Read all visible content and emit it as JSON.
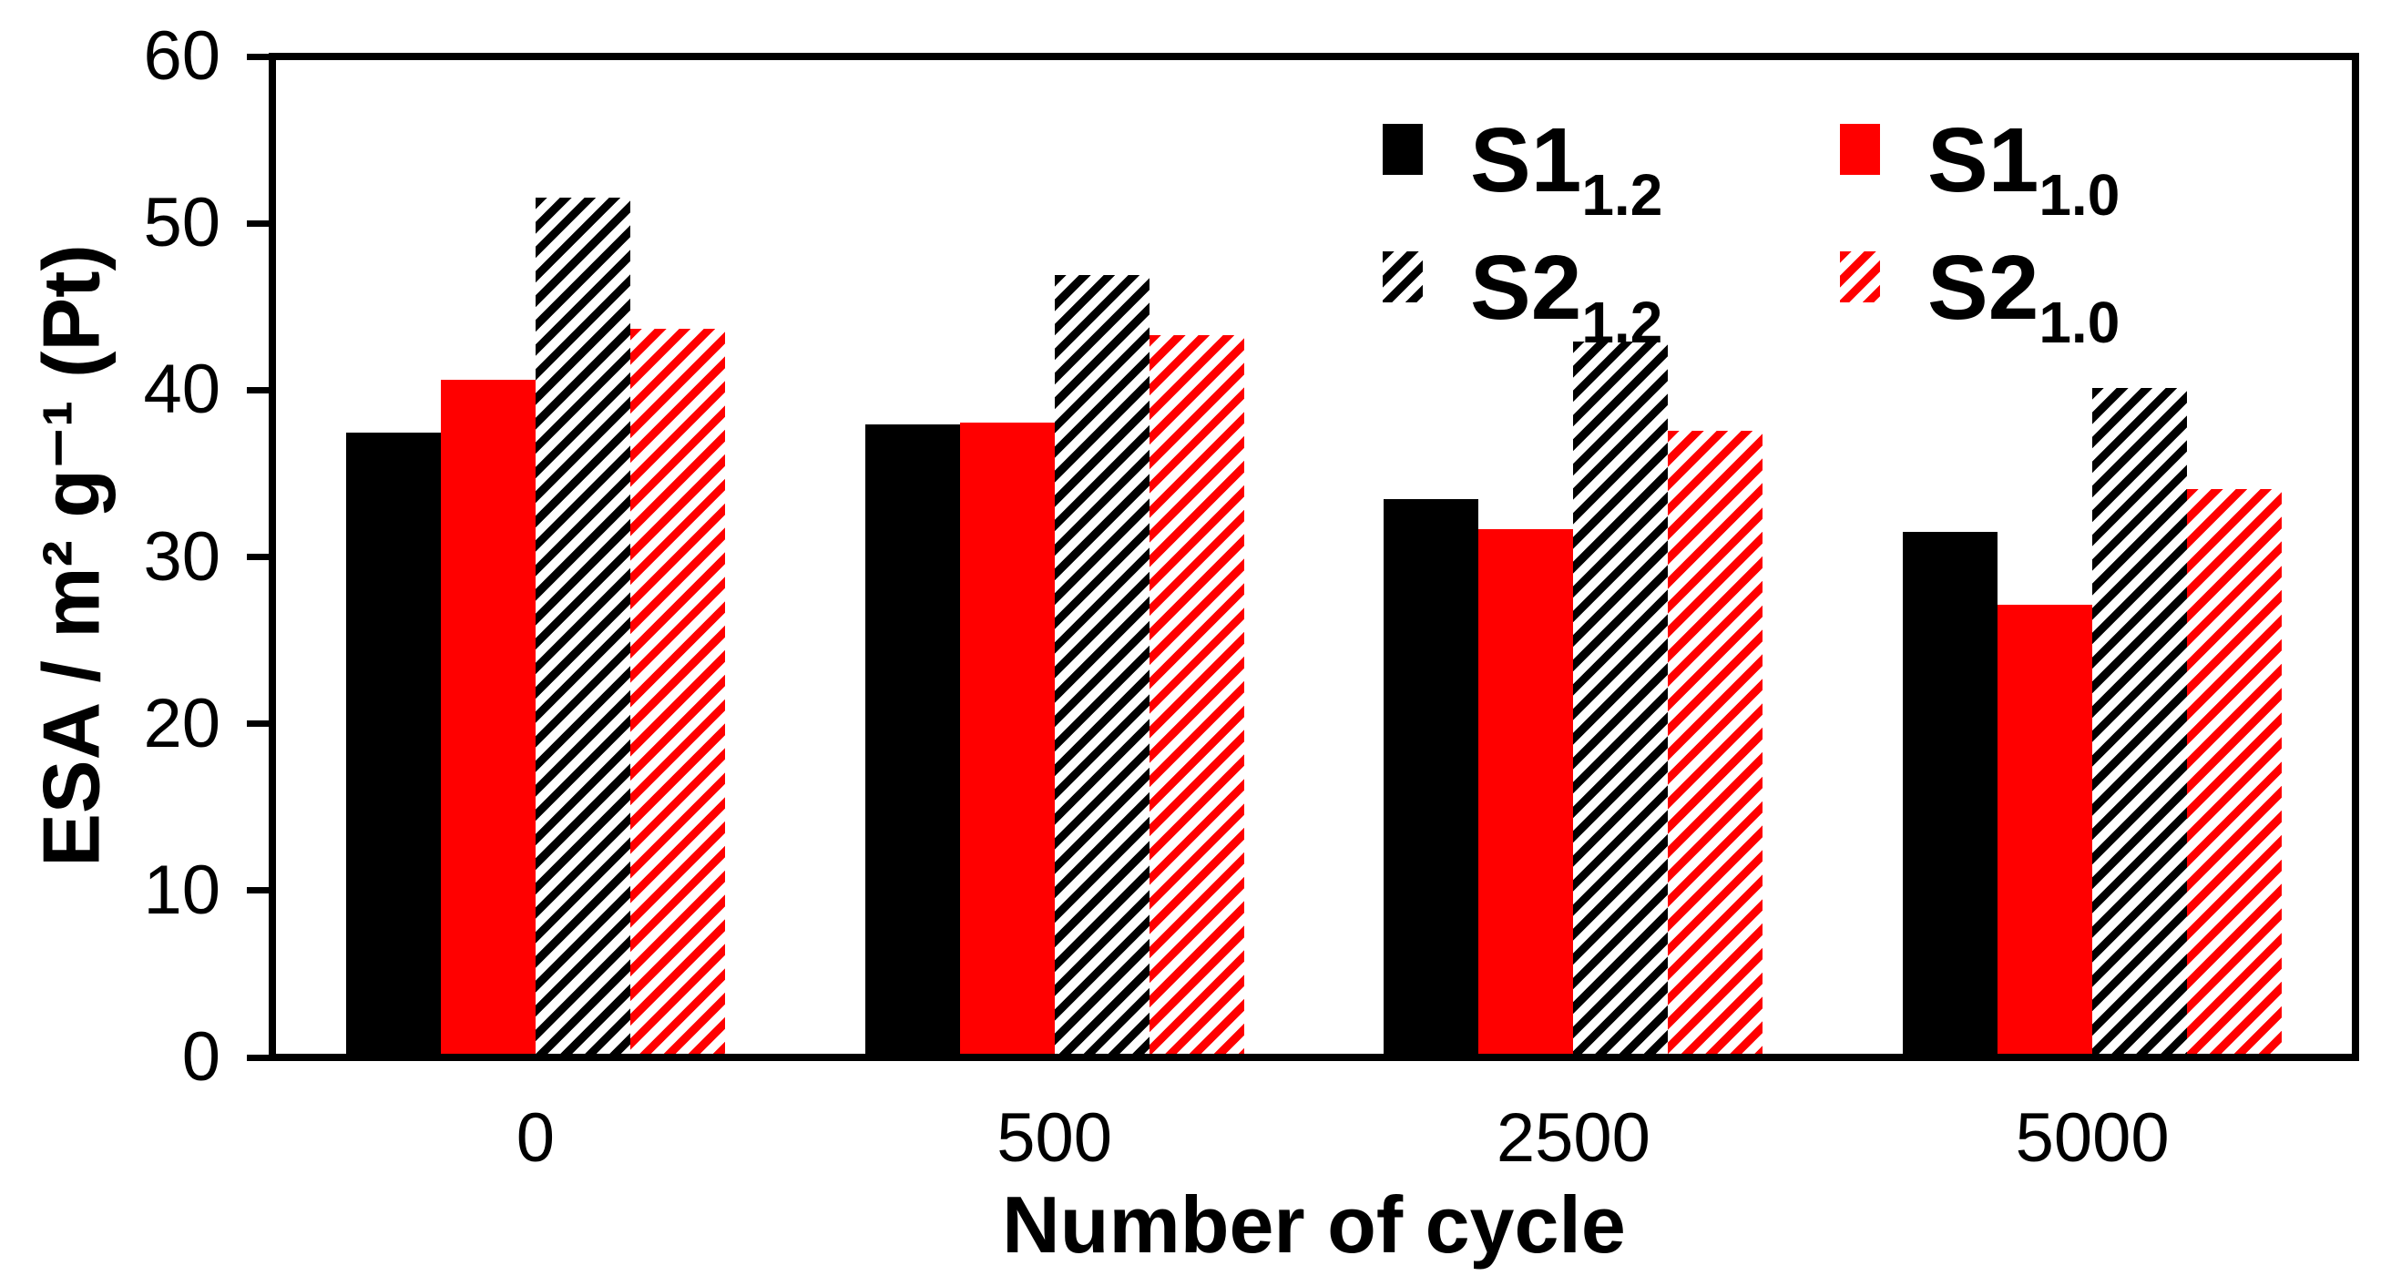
{
  "chart_data": {
    "type": "bar",
    "title": "",
    "categories": [
      "0",
      "500",
      "2500",
      "5000"
    ],
    "series": [
      {
        "name": "S1_1.2",
        "label_base": "S1",
        "label_sub": "1.2",
        "color": "#000000",
        "hatch": false,
        "values": [
          37.5,
          38.0,
          33.5,
          31.5
        ]
      },
      {
        "name": "S1_1.0",
        "label_base": "S1",
        "label_sub": "1.0",
        "color": "#ff0000",
        "hatch": false,
        "values": [
          40.7,
          38.1,
          31.7,
          27.1
        ]
      },
      {
        "name": "S2_1.2",
        "label_base": "S2",
        "label_sub": "1.2",
        "color": "#000000",
        "hatch": true,
        "values": [
          51.7,
          47.0,
          43.0,
          40.2
        ]
      },
      {
        "name": "S2_1.0",
        "label_base": "S2",
        "label_sub": "1.0",
        "color": "#ff0000",
        "hatch": true,
        "values": [
          43.8,
          43.4,
          37.6,
          34.1
        ]
      }
    ],
    "xlabel": "Number of cycle",
    "ylabel": "ESA / m² g⁻¹ (Pt)",
    "ylim": [
      0,
      60
    ],
    "yticks": [
      0,
      10,
      20,
      30,
      40,
      50,
      60
    ],
    "grid": false,
    "legend_position": "top-right",
    "colors": {
      "axis": "#000000",
      "background": "#ffffff",
      "red_series": "#ff0000",
      "black_series": "#000000"
    }
  }
}
